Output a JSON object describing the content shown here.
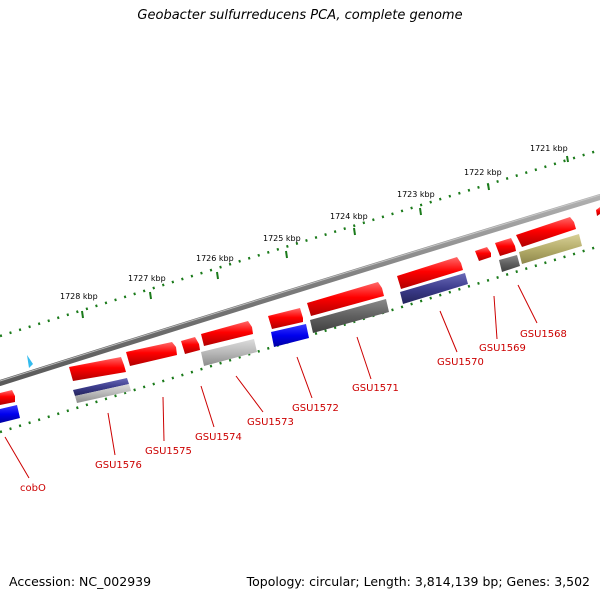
{
  "title": "Geobacter sulfurreducens PCA, complete genome",
  "footer": {
    "accession": "Accession: NC_002939",
    "topology": "Topology: circular; Length: 3,814,139 bp; Genes: 3,502"
  },
  "kbp_ticks": [
    "1721 kbp",
    "1722 kbp",
    "1723 kbp",
    "1724 kbp",
    "1725 kbp",
    "1726 kbp",
    "1727 kbp",
    "1728 kbp"
  ],
  "gene_labels": [
    "GSU1568",
    "GSU1569",
    "GSU1570",
    "GSU1571",
    "GSU1572",
    "GSU1573",
    "GSU1574",
    "GSU1575",
    "GSU1576",
    "cobO"
  ],
  "colors": {
    "backbone": "#7a7a7a",
    "tick": "#1a7a1a",
    "gene_red": "#ee0000",
    "label_red": "#cc0000",
    "blue": "#0000ee",
    "navy": "#3a3a8a",
    "gray": "#606060",
    "light_gray": "#b0b0b0",
    "olive": "#b5ad6a",
    "marker": "#33bbee"
  }
}
